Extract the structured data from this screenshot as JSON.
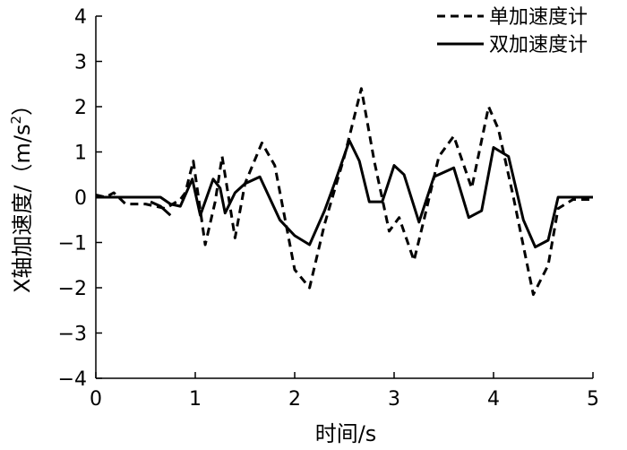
{
  "chart_data": {
    "type": "line",
    "xlabel": "时间/s",
    "ylabel_main": "X轴加速度/（m/s",
    "ylabel_sup": "2",
    "ylabel_close": "）",
    "xlim": [
      0,
      5
    ],
    "ylim": [
      -4,
      4
    ],
    "xticks": [
      "0",
      "1",
      "2",
      "3",
      "4",
      "5"
    ],
    "yticks": [
      "−4",
      "−3",
      "−2",
      "−1",
      "0",
      "1",
      "2",
      "3",
      "4"
    ],
    "grid": false,
    "legend_position": "top-right",
    "series": [
      {
        "name": "单加速度计",
        "style": "dashed",
        "color": "#000000",
        "x": [
          0,
          0.1,
          0.18,
          0.3,
          0.5,
          0.7,
          0.85,
          0.9,
          0.98,
          1.1,
          1.2,
          1.27,
          1.4,
          1.5,
          1.67,
          1.8,
          2.0,
          2.15,
          2.3,
          2.5,
          2.67,
          2.8,
          2.95,
          3.05,
          3.2,
          3.3,
          3.45,
          3.6,
          3.78,
          3.95,
          4.05,
          4.2,
          4.4,
          4.55,
          4.65,
          4.8,
          5.0
        ],
        "y": [
          0.05,
          0.0,
          0.1,
          -0.15,
          -0.15,
          -0.25,
          -0.05,
          0.1,
          0.8,
          -1.05,
          -0.1,
          0.9,
          -0.9,
          0.3,
          1.2,
          0.7,
          -1.6,
          -2.0,
          -0.6,
          0.9,
          2.4,
          0.8,
          -0.75,
          -0.45,
          -1.4,
          -0.5,
          0.9,
          1.35,
          0.2,
          2.0,
          1.5,
          0.0,
          -2.15,
          -1.5,
          -0.25,
          -0.05,
          -0.05
        ]
      },
      {
        "name": "双加速度计",
        "style": "solid",
        "color": "#000000",
        "x": [
          0,
          0.2,
          0.5,
          0.65,
          0.75,
          0.85,
          0.97,
          1.05,
          1.18,
          1.25,
          1.3,
          1.4,
          1.5,
          1.65,
          1.85,
          2.0,
          2.15,
          2.3,
          2.4,
          2.55,
          2.65,
          2.75,
          2.88,
          3.0,
          3.1,
          3.25,
          3.4,
          3.6,
          3.75,
          3.88,
          4.0,
          4.15,
          4.3,
          4.42,
          4.55,
          4.65,
          4.8,
          5.0
        ],
        "y": [
          0.0,
          0.0,
          0.0,
          0.0,
          -0.15,
          -0.2,
          0.4,
          -0.4,
          0.4,
          0.2,
          -0.35,
          0.1,
          0.3,
          0.45,
          -0.5,
          -0.85,
          -1.05,
          -0.3,
          0.3,
          1.25,
          0.8,
          -0.1,
          -0.1,
          0.7,
          0.5,
          -0.55,
          0.45,
          0.65,
          -0.45,
          -0.3,
          1.1,
          0.9,
          -0.5,
          -1.1,
          -0.95,
          0.0,
          0.0,
          0.0
        ]
      },
      {
        "name": "",
        "style": "solid",
        "color": "#000000",
        "x": [
          0.55,
          0.65,
          0.75
        ],
        "y": [
          -0.1,
          -0.2,
          -0.4
        ]
      }
    ]
  }
}
